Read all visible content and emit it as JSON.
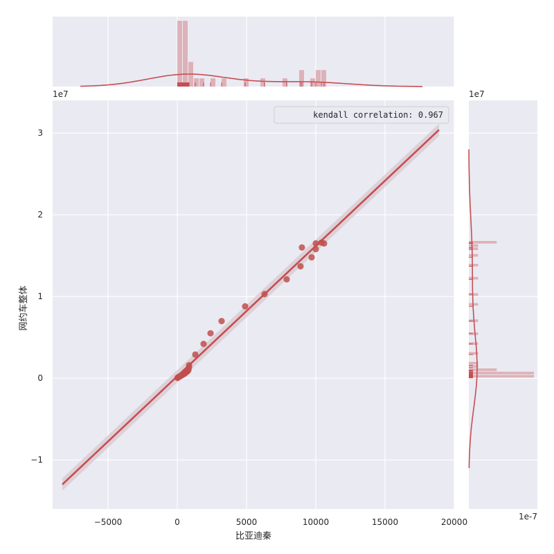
{
  "chart_data": {
    "type": "scatter",
    "xlabel": "比亚迪秦",
    "ylabel": "网约车整体",
    "xlim": [
      -9000,
      20000
    ],
    "ylim": [
      -16000000,
      34000000
    ],
    "y_offset_label": "1e7",
    "marginal_y_offset_label": "1e7",
    "marginal_x_offset_label": "1e-7",
    "x_ticks": [
      {
        "value": -5000,
        "label": "−5000"
      },
      {
        "value": 0,
        "label": "0"
      },
      {
        "value": 5000,
        "label": "5000"
      },
      {
        "value": 10000,
        "label": "10000"
      },
      {
        "value": 15000,
        "label": "15000"
      },
      {
        "value": 20000,
        "label": "20000"
      }
    ],
    "y_ticks": [
      {
        "value": -10000000,
        "label": "−1"
      },
      {
        "value": 0,
        "label": "0"
      },
      {
        "value": 10000000,
        "label": "1"
      },
      {
        "value": 20000000,
        "label": "2"
      },
      {
        "value": 30000000,
        "label": "3"
      }
    ],
    "legend": {
      "text": "kendall correlation: 0.967",
      "position": "top-right"
    },
    "series": [
      {
        "points": [
          [
            20,
            50000
          ],
          [
            60,
            100000
          ],
          [
            100,
            150000
          ],
          [
            150,
            200000
          ],
          [
            200,
            250000
          ],
          [
            250,
            300000
          ],
          [
            300,
            350000
          ],
          [
            350,
            400000
          ],
          [
            400,
            450000
          ],
          [
            450,
            500000
          ],
          [
            500,
            550000
          ],
          [
            550,
            600000
          ],
          [
            600,
            700000
          ],
          [
            650,
            750000
          ],
          [
            700,
            800000
          ],
          [
            750,
            900000
          ],
          [
            800,
            1000000
          ],
          [
            850,
            1300000
          ],
          [
            850,
            1600000
          ],
          [
            1300,
            2900000
          ],
          [
            1900,
            4200000
          ],
          [
            2400,
            5500000
          ],
          [
            3200,
            7000000
          ],
          [
            4900,
            8800000
          ],
          [
            6300,
            10300000
          ],
          [
            7900,
            12100000
          ],
          [
            8900,
            13700000
          ],
          [
            9000,
            16000000
          ],
          [
            9700,
            14800000
          ],
          [
            10000,
            16500000
          ],
          [
            10000,
            15800000
          ],
          [
            10400,
            16600000
          ],
          [
            10600,
            16500000
          ]
        ]
      }
    ],
    "regression_line": {
      "x": [
        -8300,
        18900
      ],
      "y": [
        -13000000,
        30400000
      ]
    },
    "colors": {
      "points": "#c0504d",
      "line": "#c44e52",
      "band": "#d7c4cc",
      "hist": "#dca7ae",
      "background": "#eaeaf2",
      "grid": "#ffffff"
    }
  }
}
